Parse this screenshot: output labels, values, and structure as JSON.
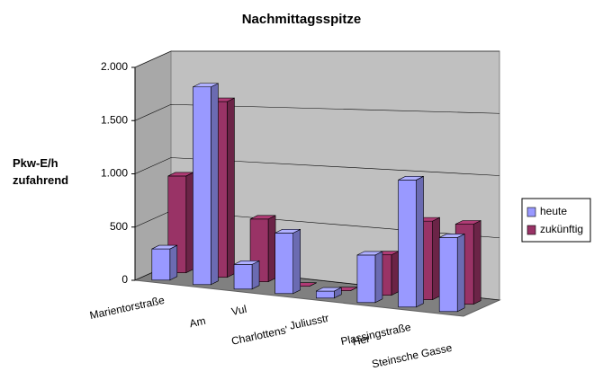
{
  "chart_data": {
    "type": "bar3d",
    "title": "Nachmittagsspitze",
    "y_label": "Pkw-E/h zufahrend",
    "categories": [
      "Marientorstraße",
      "Am",
      "Vul",
      "Charlottens'",
      "Juliusstr",
      "Her",
      "Plassingstraße",
      "Steinsche Gasse"
    ],
    "series": [
      {
        "name": "heute",
        "color": "#9999ff",
        "values": [
          290,
          1800,
          220,
          530,
          60,
          400,
          1050,
          600
        ]
      },
      {
        "name": "zukünftig",
        "color": "#993366",
        "values": [
          900,
          1600,
          560,
          0,
          0,
          340,
          650,
          650
        ]
      }
    ],
    "ylim": [
      0,
      2000
    ],
    "yticks": [
      0,
      500,
      {
        "value": 1000,
        "label": "1.000"
      },
      {
        "value": 1500,
        "label": "1.500"
      },
      {
        "value": 2000,
        "label": "2.000"
      }
    ],
    "grid": true,
    "legend": "right"
  }
}
